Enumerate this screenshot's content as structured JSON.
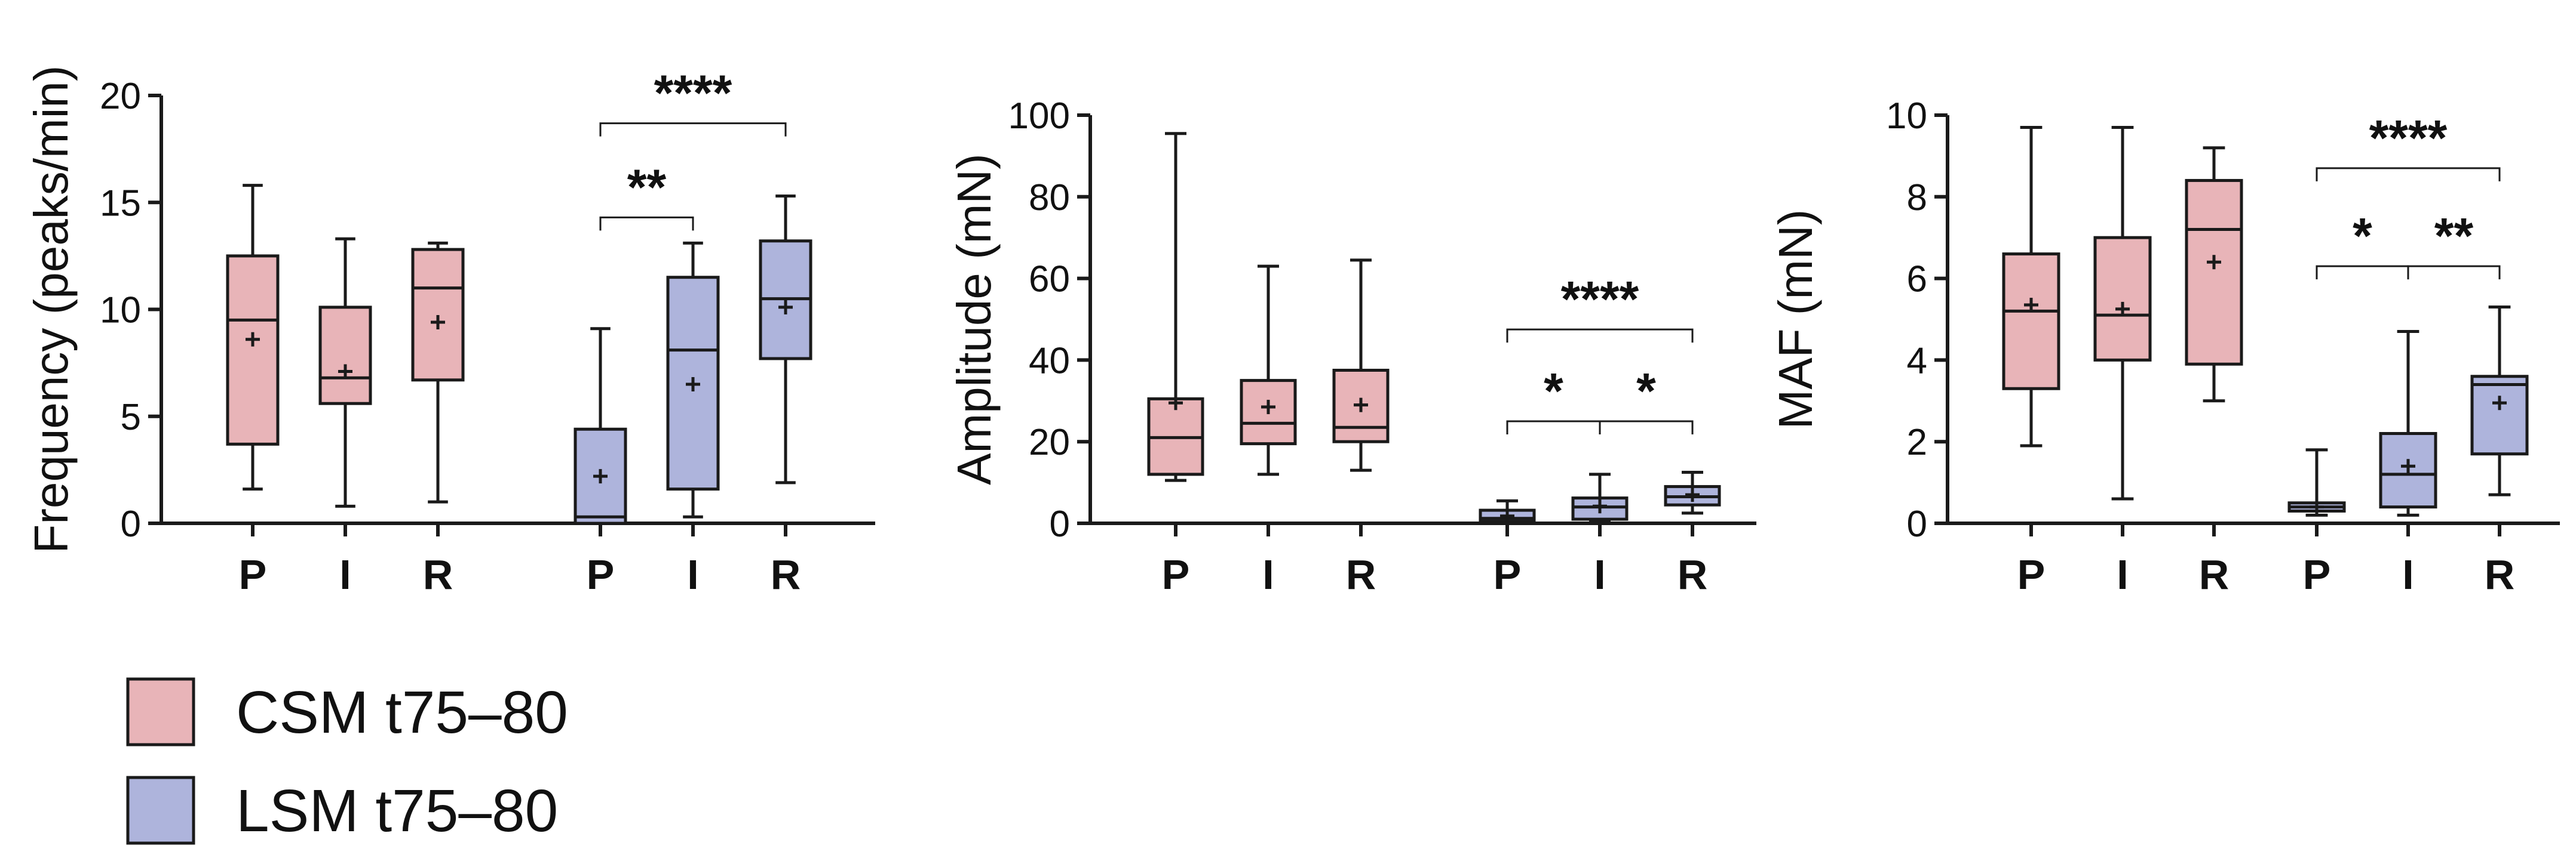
{
  "colors": {
    "csm_fill": "#E8B4B8",
    "lsm_fill": "#AEB4DC",
    "stroke": "#1a1a1a"
  },
  "legend": [
    {
      "label": "CSM t75–80",
      "color": "#E8B4B8"
    },
    {
      "label": "LSM t75–80",
      "color": "#AEB4DC"
    }
  ],
  "chart_data": [
    {
      "type": "box",
      "ylabel": "Frequency (peaks/min)",
      "ylim": [
        0,
        20
      ],
      "yticks": [
        "0",
        "5",
        "10",
        "15",
        "20"
      ],
      "categories": [
        "P",
        "I",
        "R",
        "P",
        "I",
        "R"
      ],
      "groups": [
        "CSM t75–80",
        "CSM t75–80",
        "CSM t75–80",
        "LSM t75–80",
        "LSM t75–80",
        "LSM t75–80"
      ],
      "boxes": [
        {
          "min": 1.6,
          "q1": 3.7,
          "median": 9.5,
          "q3": 12.5,
          "max": 15.8,
          "mean": 8.6
        },
        {
          "min": 0.8,
          "q1": 5.6,
          "median": 6.8,
          "q3": 10.1,
          "max": 13.3,
          "mean": 7.1
        },
        {
          "min": 1.0,
          "q1": 6.7,
          "median": 11.0,
          "q3": 12.8,
          "max": 13.1,
          "mean": 9.4
        },
        {
          "min": 0.0,
          "q1": 0.0,
          "median": 0.3,
          "q3": 4.4,
          "max": 9.1,
          "mean": 2.2
        },
        {
          "min": 0.3,
          "q1": 1.6,
          "median": 8.1,
          "q3": 11.5,
          "max": 13.1,
          "mean": 6.5
        },
        {
          "min": 1.9,
          "q1": 7.7,
          "median": 10.5,
          "q3": 13.2,
          "max": 15.3,
          "mean": 10.1
        }
      ],
      "significance": [
        {
          "from": 3,
          "to": 4,
          "label": "**",
          "y": 14.3
        },
        {
          "from": 3,
          "to": 5,
          "label": "****",
          "y": 18.7
        }
      ]
    },
    {
      "type": "box",
      "ylabel": "Amplitude (mN)",
      "ylim": [
        0,
        100
      ],
      "yticks": [
        "0",
        "20",
        "40",
        "60",
        "80",
        "100"
      ],
      "categories": [
        "P",
        "I",
        "R",
        "P",
        "I",
        "R"
      ],
      "groups": [
        "CSM t75–80",
        "CSM t75–80",
        "CSM t75–80",
        "LSM t75–80",
        "LSM t75–80",
        "LSM t75–80"
      ],
      "boxes": [
        {
          "min": 10.5,
          "q1": 12.0,
          "median": 21.0,
          "q3": 30.5,
          "max": 95.5,
          "mean": 29.5
        },
        {
          "min": 12.0,
          "q1": 19.5,
          "median": 24.5,
          "q3": 35.0,
          "max": 63.0,
          "mean": 28.5
        },
        {
          "min": 13.0,
          "q1": 20.0,
          "median": 23.5,
          "q3": 37.5,
          "max": 64.5,
          "mean": 29.0
        },
        {
          "min": 0.2,
          "q1": 0.5,
          "median": 1.2,
          "q3": 3.2,
          "max": 5.5,
          "mean": 1.8
        },
        {
          "min": 0.5,
          "q1": 1.0,
          "median": 4.0,
          "q3": 6.2,
          "max": 12.0,
          "mean": 4.2
        },
        {
          "min": 2.5,
          "q1": 4.5,
          "median": 6.5,
          "q3": 9.0,
          "max": 12.5,
          "mean": 7.0
        }
      ],
      "significance": [
        {
          "from": 3,
          "to": 4,
          "label": "*",
          "y": 25.0
        },
        {
          "from": 4,
          "to": 5,
          "label": "*",
          "y": 25.0
        },
        {
          "from": 3,
          "to": 5,
          "label": "****",
          "y": 47.5
        }
      ]
    },
    {
      "type": "box",
      "ylabel": "MAF (mN)",
      "ylim": [
        0,
        10
      ],
      "yticks": [
        "0",
        "2",
        "4",
        "6",
        "8",
        "10"
      ],
      "categories": [
        "P",
        "I",
        "R",
        "P",
        "I",
        "R"
      ],
      "groups": [
        "CSM t75–80",
        "CSM t75–80",
        "CSM t75–80",
        "LSM t75–80",
        "LSM t75–80",
        "LSM t75–80"
      ],
      "boxes": [
        {
          "min": 1.9,
          "q1": 3.3,
          "median": 5.2,
          "q3": 6.6,
          "max": 9.7,
          "mean": 5.35
        },
        {
          "min": 0.6,
          "q1": 4.0,
          "median": 5.1,
          "q3": 7.0,
          "max": 9.7,
          "mean": 5.25
        },
        {
          "min": 3.0,
          "q1": 3.9,
          "median": 7.2,
          "q3": 8.4,
          "max": 9.2,
          "mean": 6.4
        },
        {
          "min": 0.2,
          "q1": 0.3,
          "median": 0.4,
          "q3": 0.5,
          "max": 1.8,
          "mean": 0.4
        },
        {
          "min": 0.2,
          "q1": 0.4,
          "median": 1.2,
          "q3": 2.2,
          "max": 4.7,
          "mean": 1.4
        },
        {
          "min": 0.7,
          "q1": 1.7,
          "median": 3.4,
          "q3": 3.6,
          "max": 5.3,
          "mean": 2.95
        }
      ],
      "significance": [
        {
          "from": 3,
          "to": 4,
          "label": "*",
          "y": 6.3
        },
        {
          "from": 4,
          "to": 5,
          "label": "**",
          "y": 6.3
        },
        {
          "from": 3,
          "to": 5,
          "label": "****",
          "y": 8.7
        }
      ]
    }
  ]
}
